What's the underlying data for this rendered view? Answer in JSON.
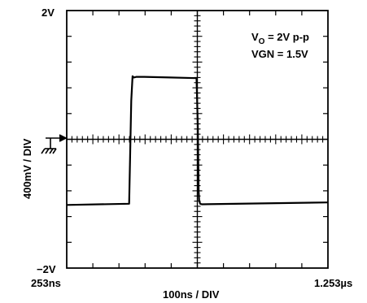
{
  "chart_data": {
    "type": "line",
    "title": "",
    "xlabel": "100ns / DIV",
    "ylabel": "400mV / DIV",
    "x_start_label": "253ns",
    "x_end_label": "1.253µs",
    "y_top_label": "2V",
    "y_bottom_label": "−2V",
    "xlim_ns": [
      253,
      1253
    ],
    "ylim_V": [
      -2,
      2
    ],
    "grid": true,
    "divisions": {
      "x": 10,
      "y": 10
    },
    "annotations": {
      "line1_main": "V",
      "line1_sub": "O",
      "line1_rest": " = 2V p-p",
      "line2": "VGN = 1.5V"
    },
    "series": [
      {
        "color": "#000000",
        "x": [
          253,
          492,
          496,
          500,
          505,
          510,
          520,
          550,
          650,
          750,
          755,
          758,
          760,
          764,
          770,
          1253
        ],
        "y": [
          -1.02,
          -1.0,
          -0.2,
          0.6,
          0.98,
          0.96,
          0.97,
          0.97,
          0.96,
          0.95,
          0.2,
          -0.8,
          -0.95,
          -1.0,
          -1.01,
          -0.98
        ]
      }
    ]
  }
}
